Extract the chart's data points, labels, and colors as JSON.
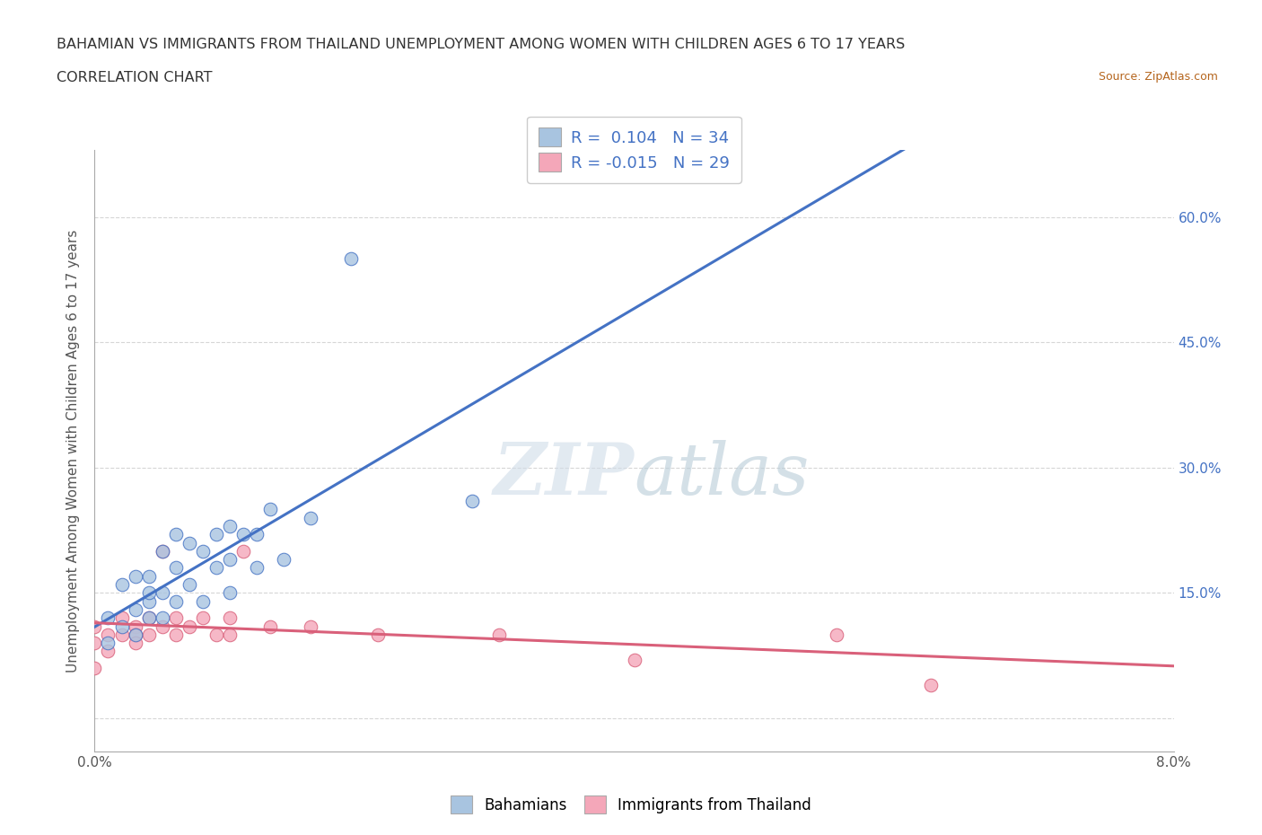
{
  "title": "BAHAMIAN VS IMMIGRANTS FROM THAILAND UNEMPLOYMENT AMONG WOMEN WITH CHILDREN AGES 6 TO 17 YEARS",
  "subtitle": "CORRELATION CHART",
  "source": "Source: ZipAtlas.com",
  "xlabel": "",
  "ylabel": "Unemployment Among Women with Children Ages 6 to 17 years",
  "xmin": 0.0,
  "xmax": 0.08,
  "ymin": -0.04,
  "ymax": 0.68,
  "yticks": [
    0.0,
    0.15,
    0.3,
    0.45,
    0.6
  ],
  "ytick_labels": [
    "",
    "15.0%",
    "30.0%",
    "45.0%",
    "60.0%"
  ],
  "xticks": [
    0.0,
    0.02,
    0.04,
    0.06,
    0.08
  ],
  "xtick_labels": [
    "0.0%",
    "",
    "",
    "",
    "8.0%"
  ],
  "r_bahamian": 0.104,
  "n_bahamian": 34,
  "r_thailand": -0.015,
  "n_thailand": 29,
  "color_bahamian": "#a8c4e0",
  "color_thailand": "#f4a7b9",
  "line_color_bahamian": "#4472c4",
  "line_color_thailand": "#d9607a",
  "background_color": "#ffffff",
  "grid_color": "#cccccc",
  "bahamian_x": [
    0.001,
    0.001,
    0.002,
    0.002,
    0.003,
    0.003,
    0.003,
    0.004,
    0.004,
    0.004,
    0.004,
    0.005,
    0.005,
    0.005,
    0.006,
    0.006,
    0.006,
    0.007,
    0.007,
    0.008,
    0.008,
    0.009,
    0.009,
    0.01,
    0.01,
    0.01,
    0.011,
    0.012,
    0.012,
    0.013,
    0.014,
    0.016,
    0.019,
    0.028
  ],
  "bahamian_y": [
    0.12,
    0.09,
    0.16,
    0.11,
    0.17,
    0.13,
    0.1,
    0.14,
    0.12,
    0.17,
    0.15,
    0.2,
    0.15,
    0.12,
    0.22,
    0.18,
    0.14,
    0.21,
    0.16,
    0.2,
    0.14,
    0.22,
    0.18,
    0.23,
    0.19,
    0.15,
    0.22,
    0.22,
    0.18,
    0.25,
    0.19,
    0.24,
    0.55,
    0.26
  ],
  "thailand_x": [
    0.0,
    0.0,
    0.0,
    0.001,
    0.001,
    0.002,
    0.002,
    0.003,
    0.003,
    0.003,
    0.004,
    0.004,
    0.005,
    0.005,
    0.006,
    0.006,
    0.007,
    0.008,
    0.009,
    0.01,
    0.01,
    0.011,
    0.013,
    0.016,
    0.021,
    0.03,
    0.04,
    0.055,
    0.062
  ],
  "thailand_y": [
    0.09,
    0.06,
    0.11,
    0.08,
    0.1,
    0.1,
    0.12,
    0.11,
    0.1,
    0.09,
    0.12,
    0.1,
    0.2,
    0.11,
    0.12,
    0.1,
    0.11,
    0.12,
    0.1,
    0.12,
    0.1,
    0.2,
    0.11,
    0.11,
    0.1,
    0.1,
    0.07,
    0.1,
    0.04
  ]
}
